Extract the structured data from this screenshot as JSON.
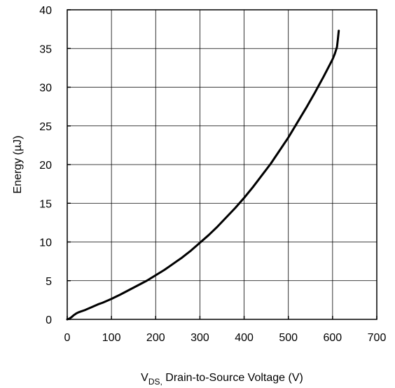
{
  "chart_data": {
    "type": "line",
    "title": "",
    "xlabel": {
      "main": "V",
      "subscript": "DS,",
      "rest": " Drain-to-Source Voltage (V)"
    },
    "ylabel": "Energy (µJ)",
    "xlim": [
      0,
      700
    ],
    "ylim": [
      0,
      40
    ],
    "xticks": [
      "0",
      "100",
      "200",
      "300",
      "400",
      "500",
      "600",
      "700"
    ],
    "yticks": [
      "0",
      "5",
      "10",
      "15",
      "20",
      "25",
      "30",
      "35",
      "40"
    ],
    "grid": true,
    "legend": "none",
    "line_color": "#000000",
    "series": [
      {
        "x": [
          0,
          5,
          10,
          15,
          20,
          25,
          30,
          40,
          50,
          60,
          70,
          80,
          90,
          100,
          120,
          140,
          160,
          180,
          200,
          220,
          240,
          260,
          280,
          300,
          320,
          340,
          360,
          380,
          400,
          420,
          440,
          460,
          480,
          500,
          520,
          540,
          560,
          580,
          600,
          605,
          610,
          612,
          614
        ],
        "y": [
          0,
          0.1,
          0.3,
          0.55,
          0.75,
          0.9,
          1.0,
          1.2,
          1.45,
          1.7,
          1.95,
          2.15,
          2.4,
          2.65,
          3.2,
          3.8,
          4.4,
          5.0,
          5.7,
          6.4,
          7.2,
          8.0,
          8.9,
          9.9,
          10.9,
          12.0,
          13.2,
          14.4,
          15.7,
          17.1,
          18.6,
          20.1,
          21.8,
          23.5,
          25.4,
          27.3,
          29.3,
          31.4,
          33.6,
          34.3,
          35.2,
          36.2,
          37.3
        ]
      }
    ]
  }
}
